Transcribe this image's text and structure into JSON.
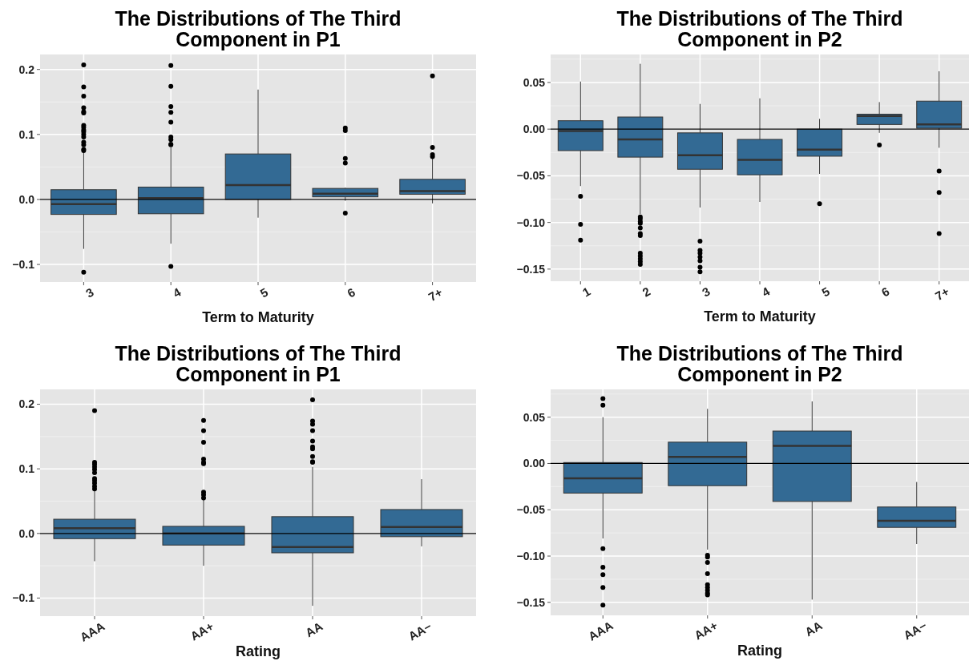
{
  "chart_data": [
    {
      "type": "box",
      "title": "The Distributions of The Third Component in P1",
      "xlabel": "Term to Maturity",
      "categories": [
        "3",
        "4",
        "5",
        "6",
        "7+"
      ],
      "color": "#336a94",
      "grid": true,
      "ylim": [
        -0.127,
        0.223
      ],
      "yticks": [
        {
          "value": -0.1,
          "label": "−0.1"
        },
        {
          "value": 0,
          "label": "0.0"
        },
        0.1,
        0.2
      ],
      "ref_lines": [
        {
          "axis": "y",
          "value": 0,
          "color": "#000000"
        }
      ],
      "boxes": [
        {
          "low": -0.076,
          "q1": -0.023,
          "median": -0.007,
          "q3": 0.015,
          "high": 0.074,
          "outliers": [
            0.207,
            0.173,
            0.159,
            0.141,
            0.135,
            0.133,
            0.114,
            0.111,
            0.107,
            0.104,
            0.1,
            0.096,
            0.088,
            0.084,
            0.077,
            0.075,
            -0.112
          ]
        },
        {
          "low": -0.068,
          "q1": -0.022,
          "median": 0.002,
          "q3": 0.019,
          "high": 0.08,
          "outliers": [
            0.206,
            0.174,
            0.143,
            0.134,
            0.119,
            0.096,
            0.092,
            0.085,
            0.084,
            -0.103
          ]
        },
        {
          "low": -0.028,
          "q1": 0,
          "median": 0.022,
          "q3": 0.07,
          "high": 0.169
        },
        {
          "low": -0.002,
          "q1": 0.004,
          "median": 0.009,
          "q3": 0.017,
          "high": 0.018,
          "outliers": [
            0.11,
            0.106,
            0.063,
            0.056,
            -0.021
          ]
        },
        {
          "low": -0.006,
          "q1": 0.008,
          "median": 0.013,
          "q3": 0.031,
          "high": 0.065,
          "outliers": [
            0.19,
            0.08,
            0.069,
            0.066
          ]
        }
      ]
    },
    {
      "type": "box",
      "title": "The Distributions of The Third Component in P2",
      "xlabel": "Term to Maturity",
      "categories": [
        "1",
        "2",
        "3",
        "4",
        "5",
        "6",
        "7+"
      ],
      "color": "#336a94",
      "grid": true,
      "ylim": [
        -0.163,
        0.08
      ],
      "yticks": [
        {
          "value": -0.15,
          "label": "−0.15"
        },
        {
          "value": -0.1,
          "label": "−0.10"
        },
        {
          "value": -0.05,
          "label": "−0.05"
        },
        {
          "value": 0,
          "label": "0.00"
        },
        0.05
      ],
      "ref_lines": [
        {
          "axis": "y",
          "value": 0,
          "color": "#000000"
        }
      ],
      "boxes": [
        {
          "low": -0.061,
          "q1": -0.023,
          "median": -0.002,
          "q3": 0.009,
          "high": 0.051,
          "outliers": [
            -0.072,
            -0.102,
            -0.119
          ]
        },
        {
          "low": -0.091,
          "q1": -0.03,
          "median": -0.011,
          "q3": 0.013,
          "high": 0.07,
          "outliers": [
            -0.094,
            -0.096,
            -0.099,
            -0.101,
            -0.106,
            -0.112,
            -0.114,
            -0.133,
            -0.136,
            -0.139,
            -0.142,
            -0.145
          ]
        },
        {
          "low": -0.084,
          "q1": -0.043,
          "median": -0.028,
          "q3": -0.004,
          "high": 0.027,
          "outliers": [
            -0.12,
            -0.13,
            -0.133,
            -0.137,
            -0.141,
            -0.148,
            -0.153
          ]
        },
        {
          "low": -0.078,
          "q1": -0.049,
          "median": -0.033,
          "q3": -0.011,
          "high": 0.033
        },
        {
          "low": -0.048,
          "q1": -0.029,
          "median": -0.022,
          "q3": 0,
          "high": 0.011,
          "outliers": [
            -0.08
          ]
        },
        {
          "low": -0.004,
          "q1": 0.005,
          "median": 0.014,
          "q3": 0.016,
          "high": 0.029,
          "outliers": [
            -0.017
          ]
        },
        {
          "low": -0.02,
          "q1": 0.001,
          "median": 0.005,
          "q3": 0.03,
          "high": 0.062,
          "outliers": [
            -0.045,
            -0.068,
            -0.112
          ]
        }
      ]
    },
    {
      "type": "box",
      "title": "The Distributions of The Third Component in P1",
      "xlabel": "Rating",
      "categories": [
        "AAA",
        "AA+",
        "AA",
        "AA−"
      ],
      "color": "#336a94",
      "grid": true,
      "ylim": [
        -0.128,
        0.223
      ],
      "yticks": [
        {
          "value": -0.1,
          "label": "−0.1"
        },
        {
          "value": 0,
          "label": "0.0"
        },
        0.1,
        0.2
      ],
      "ref_lines": [
        {
          "axis": "y",
          "value": 0,
          "color": "#000000"
        }
      ],
      "boxes": [
        {
          "low": -0.043,
          "q1": -0.008,
          "median": 0.008,
          "q3": 0.022,
          "high": 0.067,
          "outliers": [
            0.19,
            0.11,
            0.107,
            0.103,
            0.099,
            0.094,
            0.085,
            0.082,
            0.078,
            0.073,
            0.069
          ]
        },
        {
          "low": -0.05,
          "q1": -0.018,
          "median": 0,
          "q3": 0.011,
          "high": 0.053,
          "outliers": [
            0.175,
            0.159,
            0.141,
            0.115,
            0.11,
            0.108,
            0.064,
            0.06,
            0.055
          ]
        },
        {
          "low": -0.112,
          "q1": -0.03,
          "median": -0.021,
          "q3": 0.026,
          "high": 0.103,
          "outliers": [
            0.207,
            0.174,
            0.169,
            0.159,
            0.143,
            0.134,
            0.131,
            0.119,
            0.111,
            0.11
          ]
        },
        {
          "low": -0.02,
          "q1": -0.005,
          "median": 0.01,
          "q3": 0.037,
          "high": 0.084
        }
      ]
    },
    {
      "type": "box",
      "title": "The Distributions of The Third Component in P2",
      "xlabel": "Rating",
      "categories": [
        "AAA",
        "AA+",
        "AA",
        "AA−"
      ],
      "color": "#336a94",
      "grid": true,
      "ylim": [
        -0.164,
        0.08
      ],
      "yticks": [
        {
          "value": -0.15,
          "label": "−0.15"
        },
        {
          "value": -0.1,
          "label": "−0.10"
        },
        {
          "value": -0.05,
          "label": "−0.05"
        },
        {
          "value": 0,
          "label": "0.00"
        },
        0.05
      ],
      "ref_lines": [
        {
          "axis": "y",
          "value": 0,
          "color": "#000000"
        }
      ],
      "boxes": [
        {
          "low": -0.081,
          "q1": -0.032,
          "median": -0.016,
          "q3": 0.001,
          "high": 0.05,
          "outliers": [
            0.07,
            0.063,
            -0.092,
            -0.112,
            -0.12,
            -0.134,
            -0.153
          ]
        },
        {
          "low": -0.093,
          "q1": -0.024,
          "median": 0.007,
          "q3": 0.023,
          "high": 0.059,
          "outliers": [
            -0.099,
            -0.101,
            -0.107,
            -0.119,
            -0.131,
            -0.134,
            -0.137,
            -0.14,
            -0.142
          ]
        },
        {
          "low": -0.147,
          "q1": -0.041,
          "median": 0.019,
          "q3": 0.035,
          "high": 0.067
        },
        {
          "low": -0.087,
          "q1": -0.069,
          "median": -0.062,
          "q3": -0.047,
          "high": -0.02
        }
      ]
    }
  ]
}
